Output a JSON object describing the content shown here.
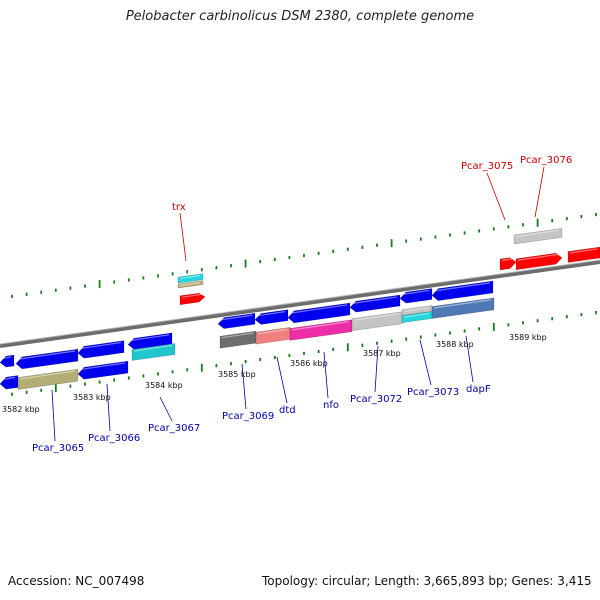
{
  "title": "Pelobacter carbinolicus DSM 2380, complete genome",
  "footer": {
    "accession": "Accession: NC_007498",
    "summary": "Topology: circular; Length: 3,665,893 bp; Genes: 3,415"
  },
  "colors": {
    "forward_gene": "#ff0000",
    "reverse_gene": "#0000ee",
    "forward_label": "#cc0000",
    "reverse_label": "#0000aa",
    "tick": "#1a7a1a",
    "backbone": "#7a7a7a"
  },
  "kbp_labels": [
    "3582 kbp",
    "3583 kbp",
    "3584 kbp",
    "3585 kbp",
    "3586 kbp",
    "3587 kbp",
    "3588 kbp",
    "3589 kbp"
  ],
  "gene_labels": {
    "forward": [
      "trx",
      "Pcar_3075",
      "Pcar_3076"
    ],
    "reverse": [
      "Pcar_3065",
      "Pcar_3066",
      "Pcar_3067",
      "Pcar_3069",
      "dtd",
      "nfo",
      "Pcar_3072",
      "Pcar_3073",
      "dapF"
    ]
  }
}
